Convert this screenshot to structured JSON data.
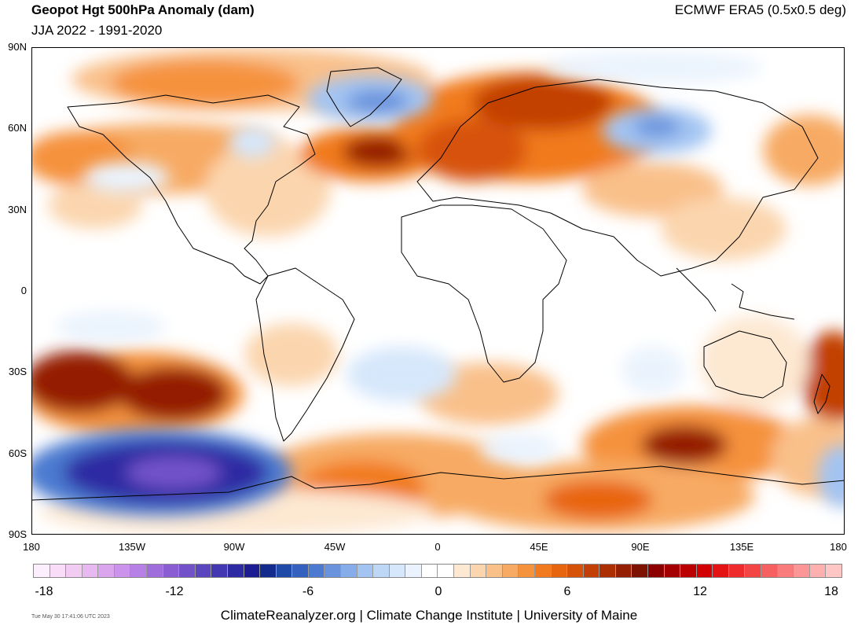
{
  "header": {
    "title": "Geopot Hgt 500hPa Anomaly (dam)",
    "subtitle": "JJA 2022 - 1991-2020",
    "source": "ECMWF ERA5 (0.5x0.5 deg)"
  },
  "axes": {
    "lat_labels": [
      "90N",
      "60N",
      "30N",
      "0",
      "30S",
      "60S",
      "90S"
    ],
    "lon_labels": [
      "180",
      "135W",
      "90W",
      "45W",
      "0",
      "45E",
      "90E",
      "135E",
      "180"
    ]
  },
  "colorbar": {
    "labels": [
      "-18",
      "-12",
      "-6",
      "0",
      "6",
      "12",
      "18"
    ],
    "colors": [
      "#fdeefd",
      "#f8dcf8",
      "#f2cbf3",
      "#e8b9f0",
      "#dba5ee",
      "#cb93ec",
      "#b780e6",
      "#a06ddc",
      "#8a5dd3",
      "#7352c9",
      "#5c46bf",
      "#4338b2",
      "#2d2aa3",
      "#1c1d92",
      "#122b8c",
      "#1f4aa8",
      "#3461bf",
      "#4c7ad0",
      "#6993dd",
      "#86acea",
      "#a3c4f2",
      "#bed7f7",
      "#d6e7fb",
      "#eaf3fd",
      "#ffffff",
      "#ffffff",
      "#fde8d2",
      "#fbd5ae",
      "#f9c08a",
      "#f7aa63",
      "#f5923c",
      "#f17a1e",
      "#e8650f",
      "#d75209",
      "#c23f05",
      "#ac2f03",
      "#941f02",
      "#7e1201",
      "#8c0000",
      "#a40000",
      "#bb0000",
      "#d20202",
      "#e41414",
      "#ef2c2c",
      "#f44545",
      "#f76060",
      "#fa7b7b",
      "#fc9696",
      "#feb0b0",
      "#ffc6c6"
    ]
  },
  "footer": {
    "timestamp": "Tue May 30 17:41:06 UTC 2023",
    "credits": "ClimateReanalyzer.org | Climate Change Institute | University of Maine"
  }
}
